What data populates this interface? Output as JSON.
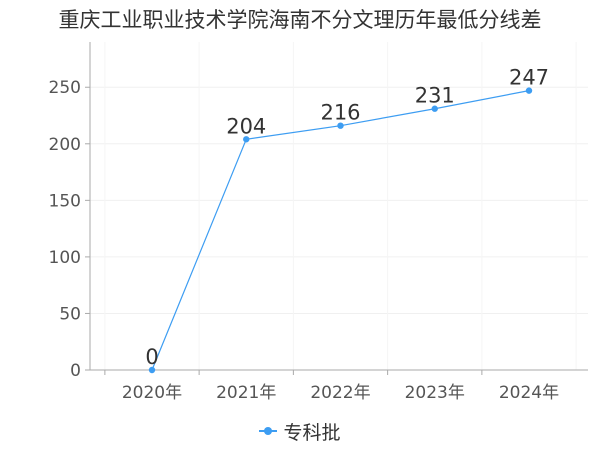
{
  "chart_data": {
    "type": "line",
    "title": "重庆工业职业技术学院海南不分文理历年最低分线差",
    "categories": [
      "2020年",
      "2021年",
      "2022年",
      "2023年",
      "2024年"
    ],
    "series": [
      {
        "name": "专科批",
        "values": [
          0,
          204,
          216,
          231,
          247
        ],
        "color": "#3d9df2"
      }
    ],
    "yticks": [
      0,
      50,
      100,
      150,
      200,
      250
    ],
    "ylim": [
      0,
      290
    ],
    "grid": true,
    "legend_position": "bottom"
  }
}
